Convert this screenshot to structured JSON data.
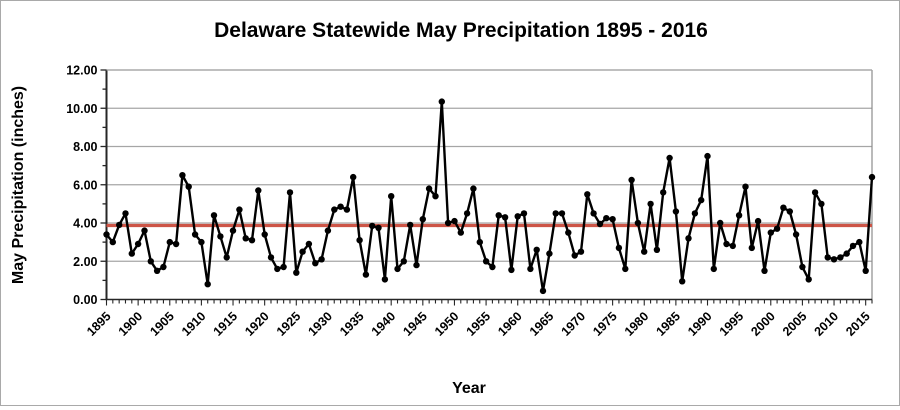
{
  "chart_data": {
    "type": "line",
    "title": "Delaware Statewide May Precipitation 1895 - 2016",
    "xlabel": "Year",
    "ylabel": "May Precipitation (inches)",
    "ylim": [
      0,
      12
    ],
    "y_major_step": 2,
    "y_minor_step": 1,
    "y_tick_decimals": 2,
    "x_start_year": 1895,
    "x_end_year": 2016,
    "x_tick_step": 5,
    "x_tick_labels": [
      "1895",
      "1900",
      "1905",
      "1910",
      "1915",
      "1920",
      "1925",
      "1930",
      "1935",
      "1940",
      "1945",
      "1950",
      "1955",
      "1960",
      "1965",
      "1970",
      "1975",
      "1980",
      "1985",
      "1990",
      "1995",
      "2000",
      "2005",
      "2010",
      "2015"
    ],
    "grid": "horizontal-major",
    "legend": "none",
    "mean_line": {
      "value": 3.87,
      "color": "#cd5547"
    },
    "colors": {
      "series_line": "#000000",
      "series_point": "#000000",
      "gridline": "#a6a6a6",
      "plot_frame": "#8c8c8c",
      "axis": "#262626",
      "background": "#ffffff"
    },
    "series": [
      {
        "name": "May precipitation (inches)",
        "values": [
          3.4,
          3.0,
          3.9,
          4.5,
          2.4,
          2.9,
          3.6,
          2.0,
          1.5,
          1.7,
          3.0,
          2.9,
          6.5,
          5.9,
          3.4,
          3.0,
          0.8,
          4.4,
          3.3,
          2.2,
          3.6,
          4.7,
          3.2,
          3.1,
          5.7,
          3.4,
          2.2,
          1.6,
          1.7,
          5.6,
          1.4,
          2.5,
          2.9,
          1.9,
          2.1,
          3.6,
          4.7,
          4.85,
          4.7,
          6.4,
          3.1,
          1.3,
          3.85,
          3.75,
          1.05,
          5.4,
          1.6,
          2.0,
          3.9,
          1.8,
          4.2,
          5.8,
          5.4,
          10.35,
          4.0,
          4.1,
          3.5,
          4.5,
          5.8,
          3.0,
          2.0,
          1.7,
          4.4,
          4.3,
          1.55,
          4.35,
          4.5,
          1.6,
          2.6,
          0.45,
          2.4,
          4.5,
          4.5,
          3.5,
          2.3,
          2.5,
          5.5,
          4.5,
          3.95,
          4.25,
          4.2,
          2.7,
          1.6,
          6.25,
          4.0,
          2.5,
          5.0,
          2.6,
          5.6,
          7.4,
          4.6,
          0.95,
          3.2,
          4.5,
          5.2,
          7.5,
          1.6,
          4.0,
          2.9,
          2.8,
          4.4,
          5.9,
          2.7,
          4.1,
          1.5,
          3.5,
          3.7,
          4.8,
          4.6,
          3.4,
          1.7,
          1.05,
          5.6,
          5.0,
          2.2,
          2.1,
          2.2,
          2.4,
          2.8,
          3.0,
          1.5,
          6.4
        ]
      }
    ]
  }
}
